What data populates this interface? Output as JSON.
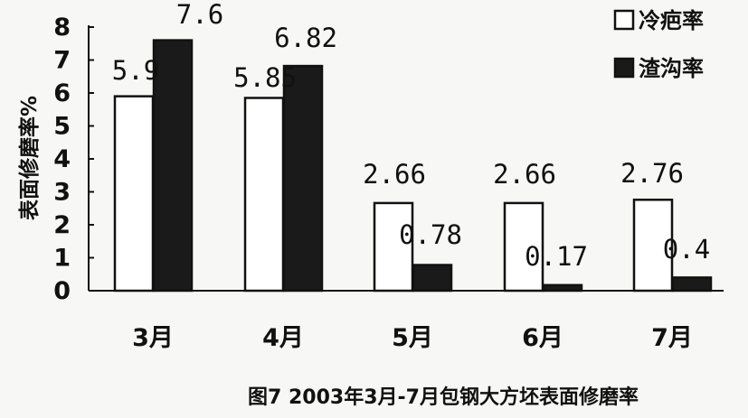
{
  "chart_data": {
    "type": "bar",
    "categories": [
      "3月",
      "4月",
      "5月",
      "6月",
      "7月"
    ],
    "series": [
      {
        "name": "冷疤率",
        "values": [
          5.9,
          5.85,
          2.66,
          2.66,
          2.76
        ],
        "labels": [
          "5.9",
          "5.85",
          "2.66",
          "2.66",
          "2.76"
        ],
        "color": "#ffffff"
      },
      {
        "name": "渣沟率",
        "values": [
          7.6,
          6.82,
          0.78,
          0.17,
          0.4
        ],
        "labels": [
          "7.6",
          "6.82",
          "0.78",
          "0.17",
          "0.4"
        ],
        "color": "#1a1a1a"
      }
    ],
    "title": "图7 2003年3月-7月包钢大方坯表面修磨率",
    "xlabel": "",
    "ylabel": "表面修磨率%",
    "ylim": [
      0,
      8
    ],
    "yticks": [
      "0",
      "1",
      "2",
      "3",
      "4",
      "5",
      "6",
      "7",
      "8"
    ],
    "grid": false,
    "legend_position": "top-right"
  }
}
